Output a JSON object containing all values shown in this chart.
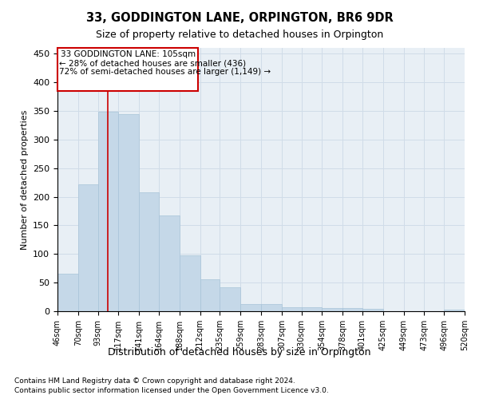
{
  "title": "33, GODDINGTON LANE, ORPINGTON, BR6 9DR",
  "subtitle": "Size of property relative to detached houses in Orpington",
  "xlabel": "Distribution of detached houses by size in Orpington",
  "ylabel": "Number of detached properties",
  "footnote1": "Contains HM Land Registry data © Crown copyright and database right 2024.",
  "footnote2": "Contains public sector information licensed under the Open Government Licence v3.0.",
  "annotation_line1": "33 GODDINGTON LANE: 105sqm",
  "annotation_line2": "← 28% of detached houses are smaller (436)",
  "annotation_line3": "72% of semi-detached houses are larger (1,149) →",
  "bin_labels": [
    "46sqm",
    "70sqm",
    "93sqm",
    "117sqm",
    "141sqm",
    "164sqm",
    "188sqm",
    "212sqm",
    "235sqm",
    "259sqm",
    "283sqm",
    "307sqm",
    "330sqm",
    "354sqm",
    "378sqm",
    "401sqm",
    "425sqm",
    "449sqm",
    "473sqm",
    "496sqm",
    "520sqm"
  ],
  "bar_values": [
    65,
    222,
    348,
    345,
    208,
    167,
    97,
    56,
    42,
    13,
    12,
    7,
    7,
    6,
    5,
    4,
    0,
    0,
    0,
    3
  ],
  "bar_color": "#c5d8e8",
  "bar_edge_color": "#a8c4d8",
  "grid_color": "#d0dce8",
  "background_color": "#e8eff5",
  "vline_x": 105,
  "vline_color": "#cc0000",
  "ylim": [
    0,
    460
  ],
  "yticks": [
    0,
    50,
    100,
    150,
    200,
    250,
    300,
    350,
    400,
    450
  ],
  "bin_edges": [
    46,
    70,
    93,
    117,
    141,
    164,
    188,
    212,
    235,
    259,
    283,
    307,
    330,
    354,
    378,
    401,
    425,
    449,
    473,
    496,
    520
  ]
}
